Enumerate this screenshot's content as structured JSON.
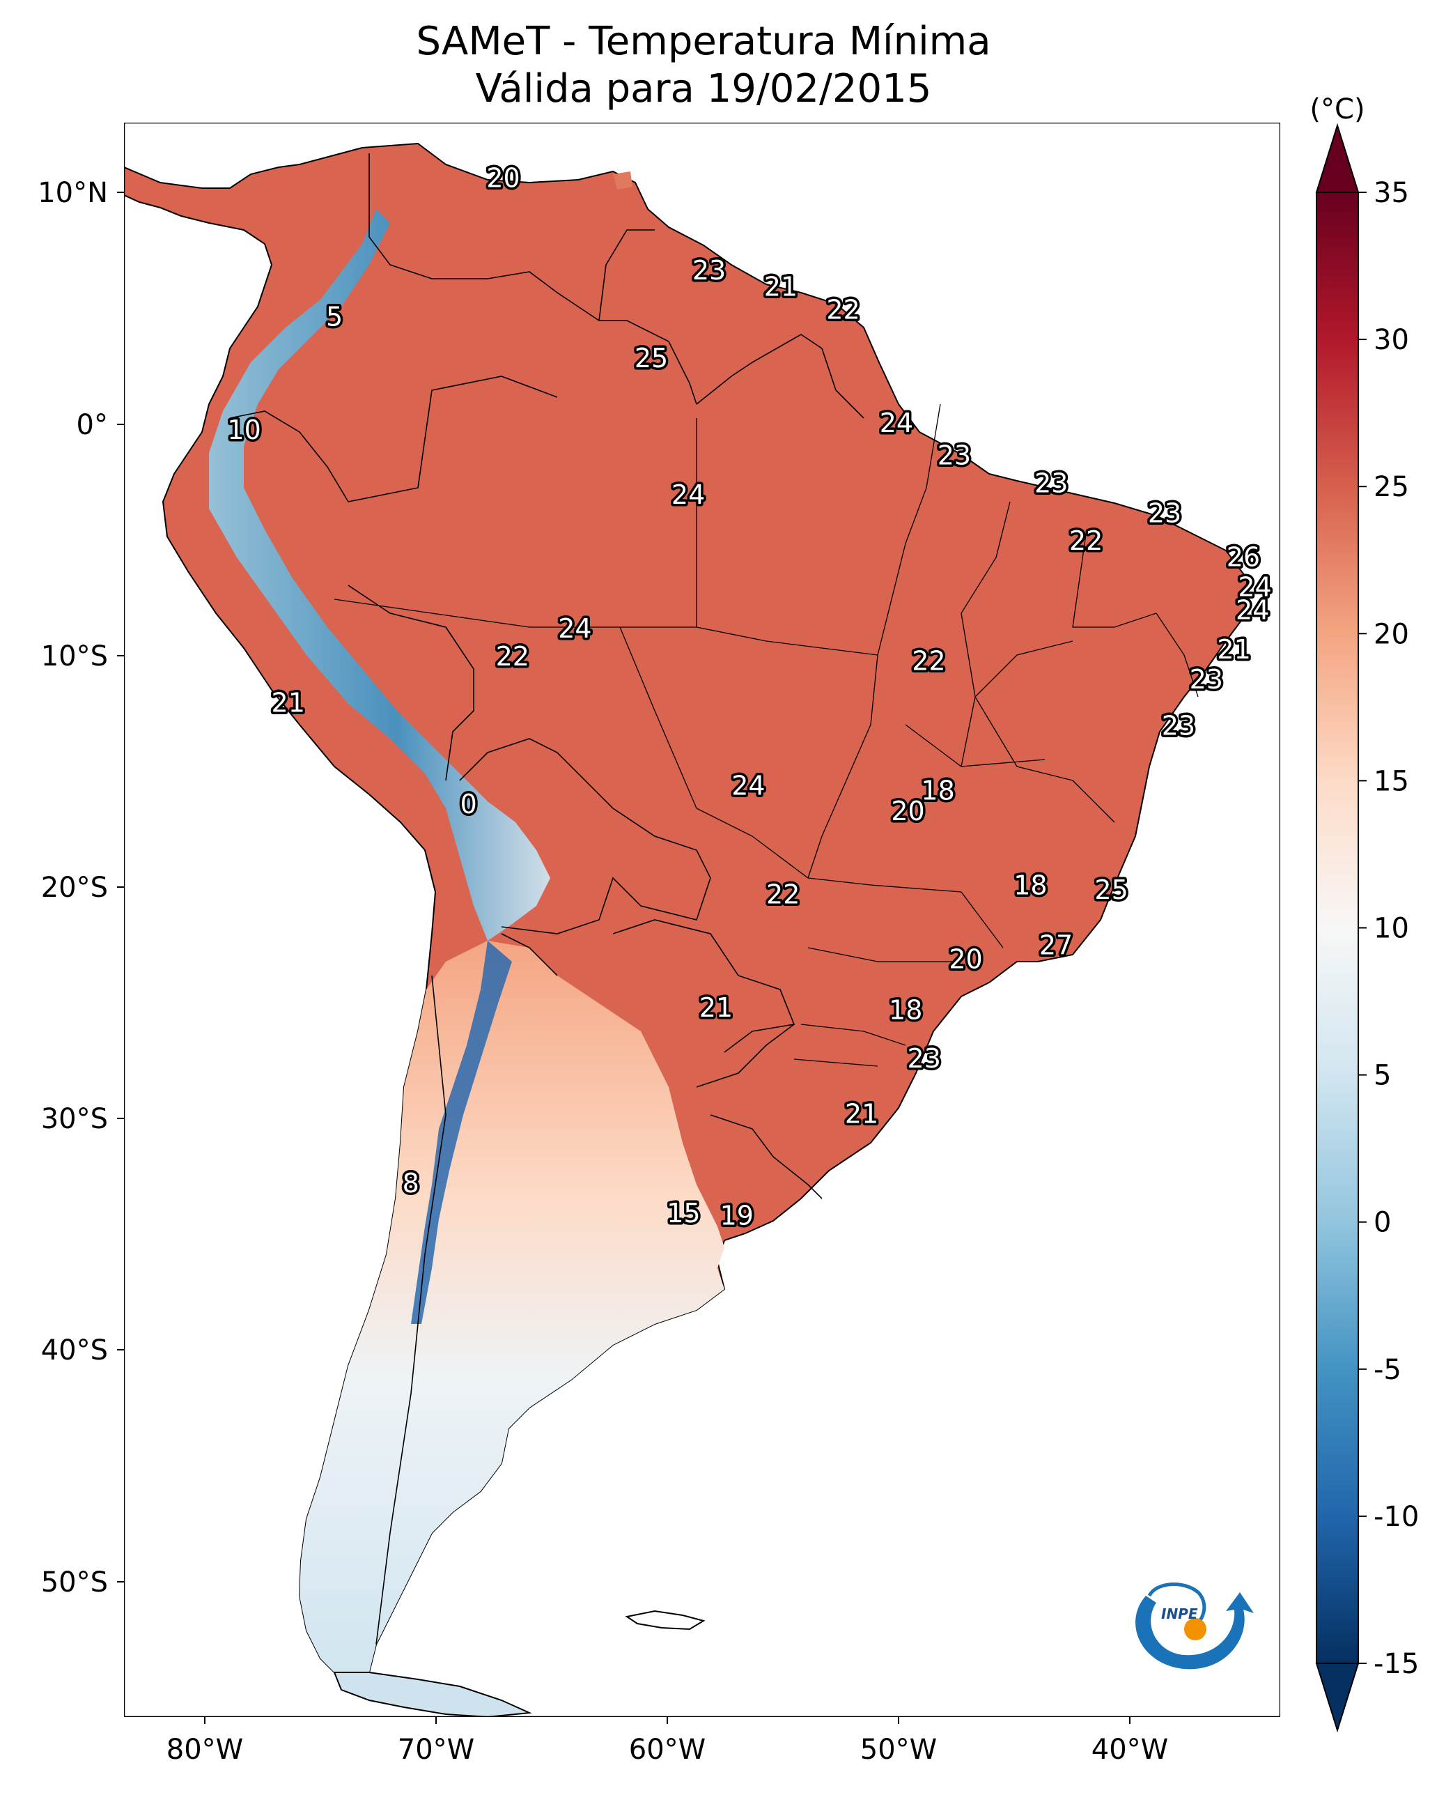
{
  "map": {
    "title_line1": "SAMeT - Temperatura Mínima",
    "title_line2": "Válida para 19/02/2015",
    "variable": "Temperatura Mínima",
    "date": "19/02/2015",
    "lat_ticks": [
      "10°N",
      "0°",
      "10°S",
      "20°S",
      "30°S",
      "40°S",
      "50°S"
    ],
    "lon_ticks": [
      "80°W",
      "70°W",
      "60°W",
      "50°W",
      "40°W"
    ],
    "lat_range": [
      -56,
      13
    ],
    "lon_range": [
      -83,
      -33
    ],
    "labels": [
      {
        "text": "20",
        "lon": -66.6,
        "lat": 10.6
      },
      {
        "text": "23",
        "lon": -57.7,
        "lat": 6.6
      },
      {
        "text": "21",
        "lon": -54.6,
        "lat": 5.9
      },
      {
        "text": "22",
        "lon": -51.9,
        "lat": 4.9
      },
      {
        "text": "5",
        "lon": -73.9,
        "lat": 4.6
      },
      {
        "text": "25",
        "lon": -60.2,
        "lat": 2.8
      },
      {
        "text": "10",
        "lon": -77.8,
        "lat": -0.3
      },
      {
        "text": "24",
        "lon": -49.6,
        "lat": 0.0
      },
      {
        "text": "23",
        "lon": -47.1,
        "lat": -1.4
      },
      {
        "text": "24",
        "lon": -58.6,
        "lat": -3.1
      },
      {
        "text": "23",
        "lon": -42.9,
        "lat": -2.6
      },
      {
        "text": "23",
        "lon": -38.0,
        "lat": -3.9
      },
      {
        "text": "22",
        "lon": -41.4,
        "lat": -5.1
      },
      {
        "text": "26",
        "lon": -34.6,
        "lat": -5.8
      },
      {
        "text": "24",
        "lon": -34.1,
        "lat": -7.1
      },
      {
        "text": "24",
        "lon": -34.2,
        "lat": -8.1
      },
      {
        "text": "24",
        "lon": -63.5,
        "lat": -8.9
      },
      {
        "text": "22",
        "lon": -66.2,
        "lat": -10.1
      },
      {
        "text": "22",
        "lon": -48.2,
        "lat": -10.3
      },
      {
        "text": "21",
        "lon": -35.0,
        "lat": -9.8
      },
      {
        "text": "23",
        "lon": -36.2,
        "lat": -11.1
      },
      {
        "text": "21",
        "lon": -75.9,
        "lat": -12.1
      },
      {
        "text": "23",
        "lon": -37.4,
        "lat": -13.1
      },
      {
        "text": "24",
        "lon": -56.0,
        "lat": -15.7
      },
      {
        "text": "18",
        "lon": -47.8,
        "lat": -15.9
      },
      {
        "text": "20",
        "lon": -49.1,
        "lat": -16.8
      },
      {
        "text": "0",
        "lon": -68.1,
        "lat": -16.5
      },
      {
        "text": "18",
        "lon": -43.8,
        "lat": -20.0
      },
      {
        "text": "22",
        "lon": -54.5,
        "lat": -20.4
      },
      {
        "text": "25",
        "lon": -40.3,
        "lat": -20.2
      },
      {
        "text": "27",
        "lon": -42.7,
        "lat": -22.6
      },
      {
        "text": "20",
        "lon": -46.6,
        "lat": -23.2
      },
      {
        "text": "21",
        "lon": -57.4,
        "lat": -25.3
      },
      {
        "text": "18",
        "lon": -49.2,
        "lat": -25.4
      },
      {
        "text": "23",
        "lon": -48.4,
        "lat": -27.5
      },
      {
        "text": "21",
        "lon": -51.1,
        "lat": -29.9
      },
      {
        "text": "8",
        "lon": -70.6,
        "lat": -32.9
      },
      {
        "text": "15",
        "lon": -58.8,
        "lat": -34.2
      },
      {
        "text": "19",
        "lon": -56.5,
        "lat": -34.3
      }
    ],
    "logo_text": "INPE"
  },
  "colorbar": {
    "unit": "(°C)",
    "ticks": [
      "35",
      "30",
      "25",
      "20",
      "15",
      "10",
      "5",
      "0",
      "-5",
      "-10",
      "-15"
    ],
    "min": -15,
    "max": 35,
    "extend": "both",
    "colormap": "RdBu_r"
  },
  "colors": {
    "ocean": "#ffffff",
    "warm": "#d6604d",
    "hot": "#b2182b",
    "neutral": "#f7f7f7",
    "cool": "#92c5de",
    "cold": "#2166ac",
    "logo_blue": "#1a73b8",
    "logo_orange": "#f39200"
  }
}
